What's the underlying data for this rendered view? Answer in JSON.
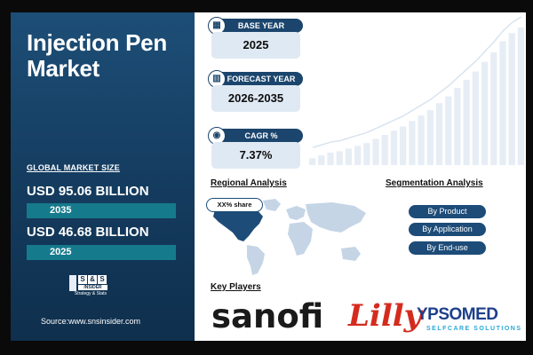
{
  "title": "Injection Pen Market",
  "global_market_size_label": "GLOBAL MARKET SIZE",
  "market_values": [
    {
      "value": "USD 95.06 BILLION",
      "year": "2035"
    },
    {
      "value": "USD 46.68 BILLION",
      "year": "2025"
    }
  ],
  "logo": {
    "letters": [
      "S",
      "&",
      "S"
    ],
    "line1": "INSIDER",
    "line2": "Strategy & Stats"
  },
  "source": "Source:www.snsinsider.com",
  "stats": [
    {
      "label": "BASE YEAR",
      "value": "2025",
      "icon": "calendar-icon"
    },
    {
      "label": "FORECAST YEAR",
      "value": "2026-2035",
      "icon": "chart-icon"
    },
    {
      "label": "CAGR %",
      "value": "7.37%",
      "icon": "coins-icon"
    }
  ],
  "regional_title": "Regional Analysis",
  "regional_badge": "XX% share",
  "segmentation_title": "Segmentation Analysis",
  "segments": [
    "By Product",
    "By Application",
    "By End-use"
  ],
  "key_players_title": "Key Players",
  "players": {
    "sanofi": "sanofi",
    "lilly": "Lilly",
    "ypsomed": "YPSOMED",
    "ypsomed_tag": "SELFCARE SOLUTIONS"
  },
  "colors": {
    "navy": "#1b456c",
    "teal_bar": "#157a8c",
    "highlight_region": "#1d4c78",
    "map_gray": "#c5d5e6",
    "lilly_red": "#d52b1e"
  },
  "background_bar_levels": [
    0.05,
    0.07,
    0.09,
    0.1,
    0.12,
    0.14,
    0.16,
    0.19,
    0.22,
    0.25,
    0.28,
    0.32,
    0.36,
    0.4,
    0.45,
    0.5,
    0.56,
    0.62,
    0.68,
    0.75,
    0.82,
    0.9,
    0.96,
    1.0
  ]
}
